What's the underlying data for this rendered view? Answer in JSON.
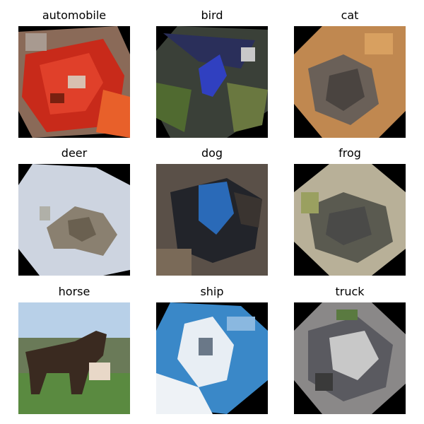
{
  "images": [
    {
      "label": "automobile",
      "icon": "automobile-photo"
    },
    {
      "label": "bird",
      "icon": "bird-photo"
    },
    {
      "label": "cat",
      "icon": "cat-photo"
    },
    {
      "label": "deer",
      "icon": "deer-photo"
    },
    {
      "label": "dog",
      "icon": "dog-photo"
    },
    {
      "label": "frog",
      "icon": "frog-photo"
    },
    {
      "label": "horse",
      "icon": "horse-photo"
    },
    {
      "label": "ship",
      "icon": "ship-photo"
    },
    {
      "label": "truck",
      "icon": "truck-photo"
    }
  ]
}
